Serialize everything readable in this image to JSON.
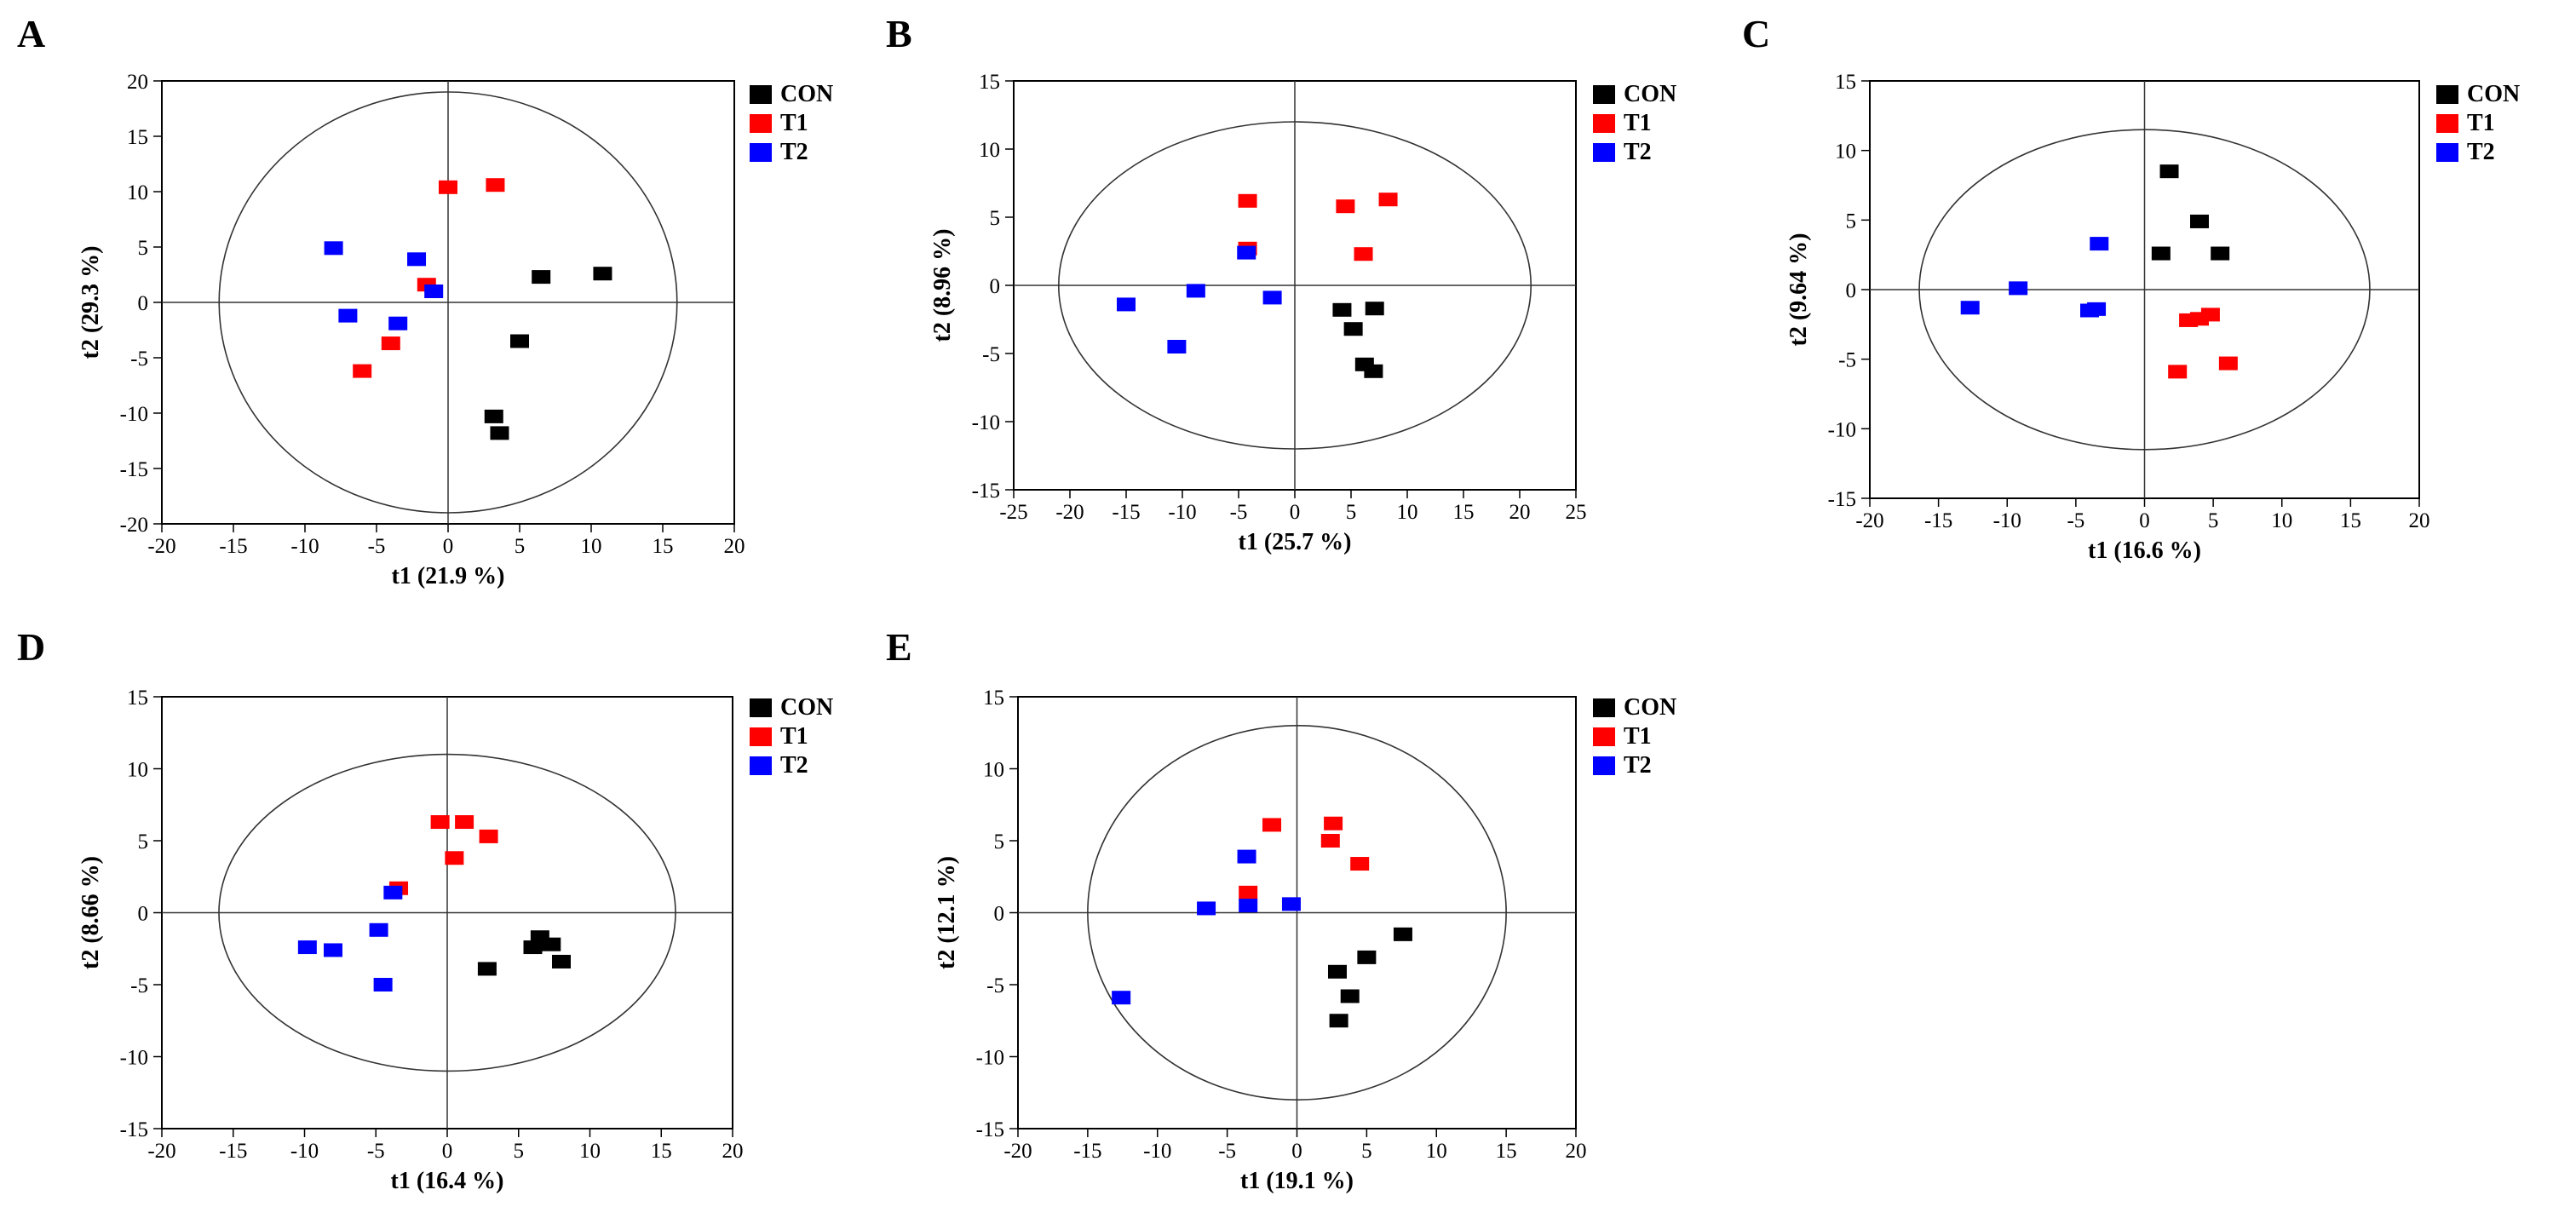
{
  "legend": {
    "entries": [
      "CON",
      "T1",
      "T2"
    ],
    "colors": [
      "#000000",
      "#ff0000",
      "#0000ff"
    ]
  },
  "chart_data": [
    {
      "type": "scatter",
      "panel_label": "A",
      "xlabel": "t1 (21.9 %)",
      "ylabel": "t2 (29.3 %)",
      "xlim": [
        -20,
        20
      ],
      "ylim": [
        -20,
        20
      ],
      "xticks": [
        "-20",
        "-15",
        "-10",
        "-5",
        "0",
        "5",
        "10",
        "15",
        "20"
      ],
      "yticks": [
        "-20",
        "-15",
        "-10",
        "-5",
        "0",
        "5",
        "10",
        "15",
        "20"
      ],
      "ellipse": {
        "rx": 16,
        "ry": 19
      },
      "series": [
        {
          "name": "CON",
          "points": [
            [
              6.5,
              2.3
            ],
            [
              10.8,
              2.6
            ],
            [
              5,
              -3.5
            ],
            [
              3.2,
              -10.3
            ],
            [
              3.6,
              -11.8
            ]
          ]
        },
        {
          "name": "T1",
          "points": [
            [
              0,
              10.4
            ],
            [
              3.3,
              10.6
            ],
            [
              -1.5,
              1.6
            ],
            [
              -4,
              -3.7
            ],
            [
              -6,
              -6.2
            ]
          ]
        },
        {
          "name": "T2",
          "points": [
            [
              -8,
              4.9
            ],
            [
              -2.2,
              3.9
            ],
            [
              -1,
              1
            ],
            [
              -7,
              -1.2
            ],
            [
              -3.5,
              -1.9
            ]
          ]
        }
      ]
    },
    {
      "type": "scatter",
      "panel_label": "B",
      "xlabel": "t1 (25.7 %)",
      "ylabel": "t2 (8.96 %)",
      "xlim": [
        -25,
        25
      ],
      "ylim": [
        -15,
        15
      ],
      "xticks": [
        "-25",
        "-20",
        "-15",
        "-10",
        "-5",
        "0",
        "5",
        "10",
        "15",
        "20",
        "25"
      ],
      "yticks": [
        "-15",
        "-10",
        "-5",
        "0",
        "5",
        "10",
        "15"
      ],
      "ellipse": {
        "rx": 21,
        "ry": 12
      },
      "series": [
        {
          "name": "CON",
          "points": [
            [
              4.2,
              -1.8
            ],
            [
              7.1,
              -1.7
            ],
            [
              5.2,
              -3.2
            ],
            [
              6.2,
              -5.8
            ],
            [
              7,
              -6.3
            ]
          ]
        },
        {
          "name": "T1",
          "points": [
            [
              -4.2,
              6.2
            ],
            [
              4.5,
              5.8
            ],
            [
              8.3,
              6.3
            ],
            [
              6.1,
              2.3
            ],
            [
              -4.2,
              2.7
            ]
          ]
        },
        {
          "name": "T2",
          "points": [
            [
              -4.3,
              2.4
            ],
            [
              -15,
              -1.4
            ],
            [
              -8.8,
              -0.4
            ],
            [
              -2,
              -0.9
            ],
            [
              -10.5,
              -4.5
            ]
          ]
        }
      ]
    },
    {
      "type": "scatter",
      "panel_label": "C",
      "xlabel": "t1 (16.6 %)",
      "ylabel": "t2 (9.64 %)",
      "xlim": [
        -20,
        20
      ],
      "ylim": [
        -15,
        15
      ],
      "xticks": [
        "-20",
        "-15",
        "-10",
        "-5",
        "0",
        "5",
        "10",
        "15",
        "20"
      ],
      "yticks": [
        "-15",
        "-10",
        "-5",
        "0",
        "5",
        "10",
        "15"
      ],
      "ellipse": {
        "rx": 16.4,
        "ry": 11.5
      },
      "series": [
        {
          "name": "CON",
          "points": [
            [
              1.8,
              8.5
            ],
            [
              4,
              4.9
            ],
            [
              1.2,
              2.6
            ],
            [
              5.5,
              2.6
            ]
          ]
        },
        {
          "name": "T1",
          "points": [
            [
              3.2,
              -2.2
            ],
            [
              4,
              -2.1
            ],
            [
              4.8,
              -1.8
            ],
            [
              2.4,
              -5.9
            ],
            [
              6.1,
              -5.3
            ]
          ]
        },
        {
          "name": "T2",
          "points": [
            [
              -3.3,
              3.3
            ],
            [
              -12.7,
              -1.3
            ],
            [
              -9.2,
              0.1
            ],
            [
              -4,
              -1.5
            ],
            [
              -3.5,
              -1.4
            ]
          ]
        }
      ]
    },
    {
      "type": "scatter",
      "panel_label": "D",
      "xlabel": "t1 (16.4 %)",
      "ylabel": "t2 (8.66 %)",
      "xlim": [
        -20,
        20
      ],
      "ylim": [
        -15,
        15
      ],
      "xticks": [
        "-20",
        "-15",
        "-10",
        "-5",
        "0",
        "5",
        "10",
        "15",
        "20"
      ],
      "yticks": [
        "-15",
        "-10",
        "-5",
        "0",
        "5",
        "10",
        "15"
      ],
      "ellipse": {
        "rx": 16,
        "ry": 11
      },
      "series": [
        {
          "name": "CON",
          "points": [
            [
              6.5,
              -1.7
            ],
            [
              7.3,
              -2.2
            ],
            [
              6,
              -2.4
            ],
            [
              8,
              -3.4
            ],
            [
              2.8,
              -3.9
            ]
          ]
        },
        {
          "name": "T1",
          "points": [
            [
              -0.5,
              6.3
            ],
            [
              1.2,
              6.3
            ],
            [
              2.9,
              5.3
            ],
            [
              0.5,
              3.8
            ],
            [
              -3.4,
              1.7
            ]
          ]
        },
        {
          "name": "T2",
          "points": [
            [
              -3.8,
              1.4
            ],
            [
              -9.8,
              -2.4
            ],
            [
              -8,
              -2.6
            ],
            [
              -4.8,
              -1.2
            ],
            [
              -4.5,
              -5
            ]
          ]
        }
      ]
    },
    {
      "type": "scatter",
      "panel_label": "E",
      "xlabel": "t1 (19.1 %)",
      "ylabel": "t2 (12.1 %)",
      "xlim": [
        -20,
        20
      ],
      "ylim": [
        -15,
        15
      ],
      "xticks": [
        "-20",
        "-15",
        "-10",
        "-5",
        "0",
        "5",
        "10",
        "15",
        "20"
      ],
      "yticks": [
        "-15",
        "-10",
        "-5",
        "0",
        "5",
        "10",
        "15"
      ],
      "ellipse": {
        "rx": 15,
        "ry": 13
      },
      "series": [
        {
          "name": "CON",
          "points": [
            [
              7.6,
              -1.5
            ],
            [
              5,
              -3.1
            ],
            [
              2.9,
              -4.1
            ],
            [
              3.8,
              -5.8
            ],
            [
              3,
              -7.5
            ]
          ]
        },
        {
          "name": "T1",
          "points": [
            [
              -1.8,
              6.1
            ],
            [
              2.6,
              6.2
            ],
            [
              2.4,
              5
            ],
            [
              4.5,
              3.4
            ],
            [
              -3.5,
              1.4
            ]
          ]
        },
        {
          "name": "T2",
          "points": [
            [
              -3.6,
              3.9
            ],
            [
              -6.5,
              0.3
            ],
            [
              -3.5,
              0.5
            ],
            [
              -0.4,
              0.6
            ],
            [
              -12.6,
              -5.9
            ]
          ]
        }
      ]
    }
  ]
}
